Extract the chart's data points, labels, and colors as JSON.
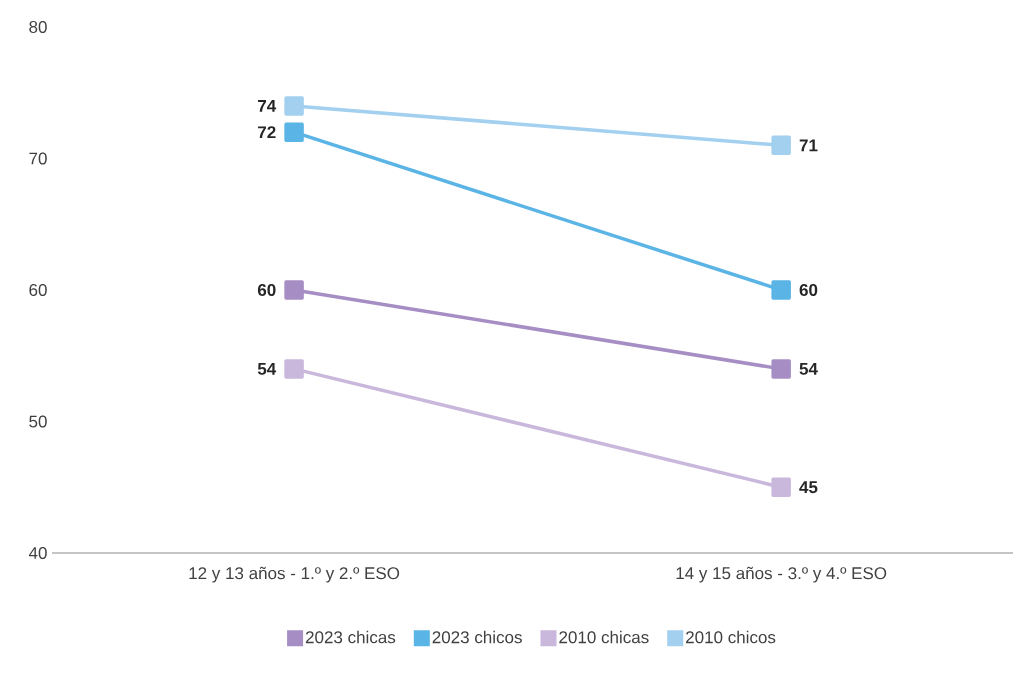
{
  "chart_data": {
    "type": "line",
    "categories": [
      "12 y 13 años - 1.º y 2.º ESO",
      "14 y 15 años - 3.º y 4.º ESO"
    ],
    "series": [
      {
        "name": "2023 chicas",
        "color": "#a68ec4",
        "values": [
          60,
          54
        ],
        "value_labels": [
          "60",
          "54"
        ]
      },
      {
        "name": "2023 chicos",
        "color": "#5ab4e5",
        "values": [
          72,
          60
        ],
        "value_labels": [
          "72",
          "60"
        ]
      },
      {
        "name": "2010 chicas",
        "color": "#c9b8dc",
        "values": [
          54,
          45
        ],
        "value_labels": [
          "54",
          "45"
        ]
      },
      {
        "name": "2010 chicos",
        "color": "#a3d0ef",
        "values": [
          74,
          71
        ],
        "value_labels": [
          "74",
          "71"
        ]
      }
    ],
    "ylim": [
      40,
      80
    ],
    "yticks": [
      40,
      50,
      60,
      70,
      80
    ],
    "grid": false,
    "legend": "bottom",
    "marker": "square",
    "line_style": "solid"
  }
}
